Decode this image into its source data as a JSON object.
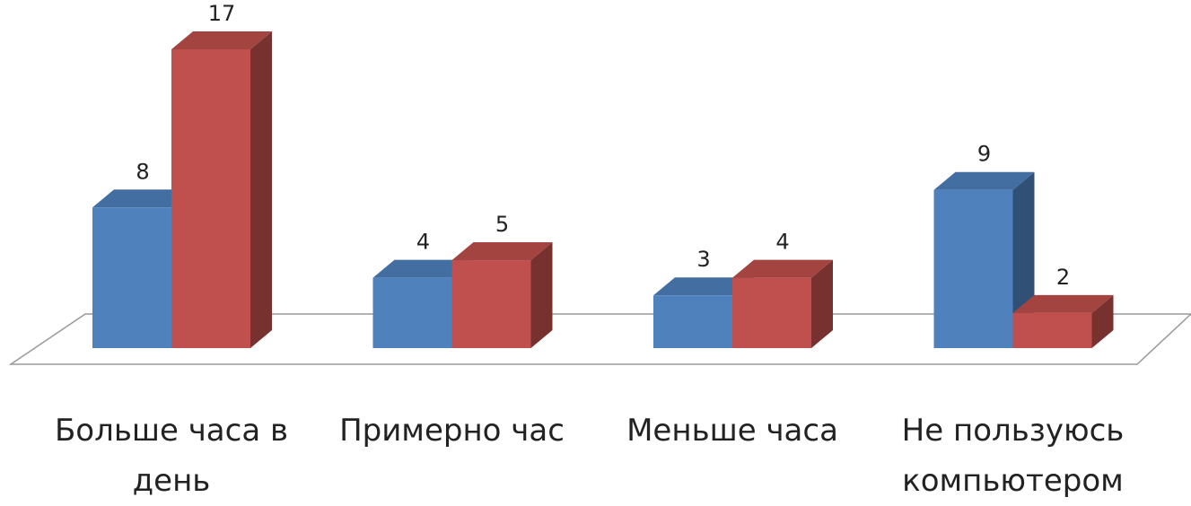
{
  "chart_data": {
    "type": "bar3d",
    "categories": [
      "Больше часа в день",
      "Примерно час",
      "Меньше часа",
      "Не пользуюсь компьютером"
    ],
    "series": [
      {
        "color": "#4f81bd",
        "values": [
          8,
          4,
          3,
          9
        ]
      },
      {
        "color": "#c0504d",
        "values": [
          17,
          5,
          4,
          2
        ]
      }
    ],
    "ylim": [
      0,
      17
    ]
  }
}
